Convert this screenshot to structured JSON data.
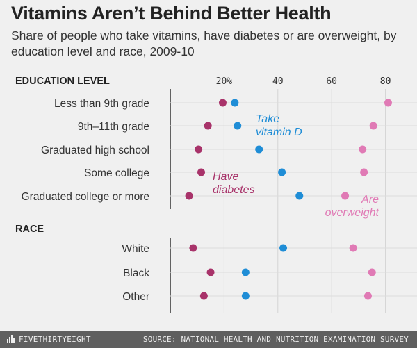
{
  "header": {
    "title": "Vitamins Aren’t Behind Better Health",
    "subtitle": "Share of people who take vitamins, have diabetes or are overweight, by education level and race, 2009-10"
  },
  "chart_data": {
    "type": "scatter",
    "ticks": [
      20,
      40,
      60,
      80
    ],
    "tick_suffix_first": "%",
    "grid": true,
    "sections": [
      {
        "heading": "EDUCATION LEVEL",
        "rows": [
          {
            "label": "Less than 9th grade",
            "diabetes": 19.5,
            "vitamin_d": 24,
            "overweight": 81
          },
          {
            "label": "9th–11th grade",
            "diabetes": 14,
            "vitamin_d": 25,
            "overweight": 75.5
          },
          {
            "label": "Graduated high school",
            "diabetes": 10.5,
            "vitamin_d": 33,
            "overweight": 71.5
          },
          {
            "label": "Some college",
            "diabetes": 11.5,
            "vitamin_d": 41.5,
            "overweight": 72
          },
          {
            "label": "Graduated college or more",
            "diabetes": 7,
            "vitamin_d": 48,
            "overweight": 65
          }
        ]
      },
      {
        "heading": "RACE",
        "rows": [
          {
            "label": "White",
            "diabetes": 8.5,
            "vitamin_d": 42,
            "overweight": 68
          },
          {
            "label": "Black",
            "diabetes": 15,
            "vitamin_d": 28,
            "overweight": 75
          },
          {
            "label": "Other",
            "diabetes": 12.5,
            "vitamin_d": 28,
            "overweight": 73.5
          }
        ]
      }
    ],
    "series": [
      {
        "key": "diabetes",
        "name": "Have diabetes",
        "color": "#a8336a"
      },
      {
        "key": "vitamin_d",
        "name": "Take vitamin D",
        "color": "#1f8dd6"
      },
      {
        "key": "overweight",
        "name": "Are overweight",
        "color": "#e07ab5"
      }
    ],
    "annotations": [
      {
        "series": "vitamin_d",
        "lines": [
          "Take",
          "vitamin D"
        ]
      },
      {
        "series": "diabetes",
        "lines": [
          "Have",
          "diabetes"
        ]
      },
      {
        "series": "overweight",
        "lines": [
          "Are",
          "overweight"
        ]
      }
    ]
  },
  "footer": {
    "logo": "FIVETHIRTYEIGHT",
    "source": "SOURCE: NATIONAL HEALTH AND NUTRITION EXAMINATION SURVEY"
  }
}
